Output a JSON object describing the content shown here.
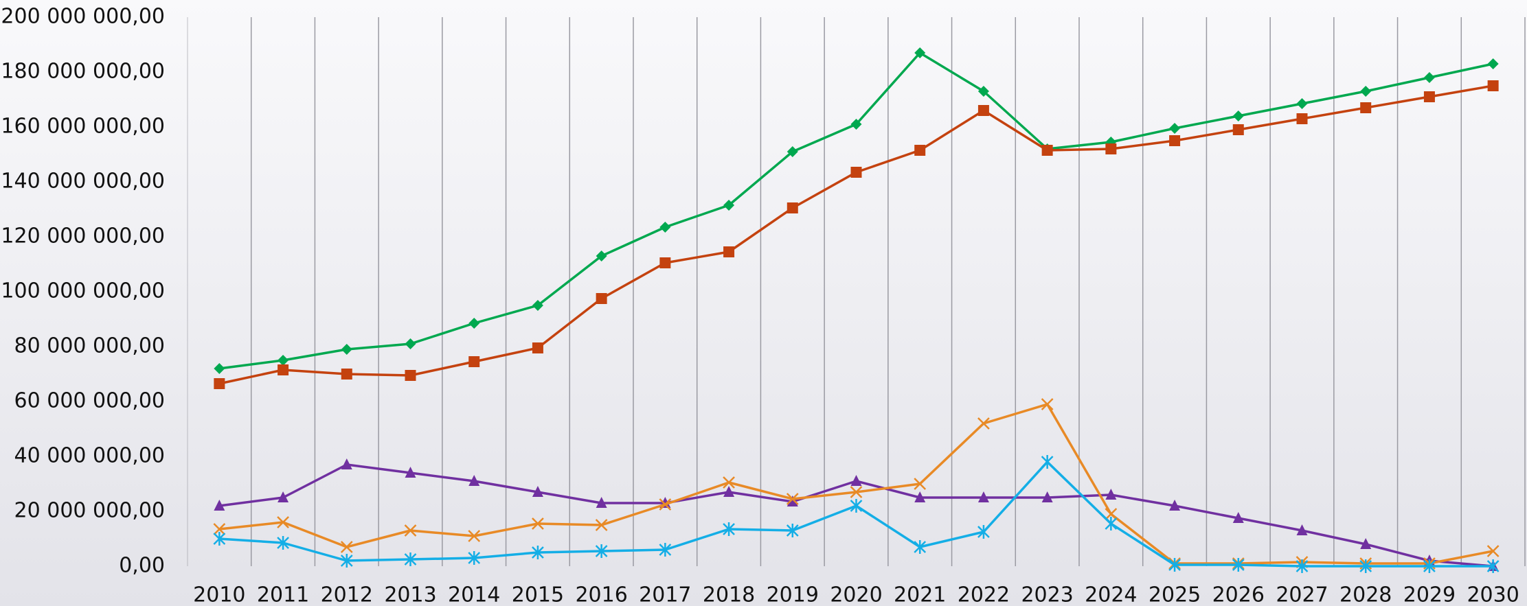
{
  "chart_data": {
    "type": "line",
    "categories": [
      "2010",
      "2011",
      "2012",
      "2013",
      "2014",
      "2015",
      "2016",
      "2017",
      "2018",
      "2019",
      "2020",
      "2021",
      "2022",
      "2023",
      "2024",
      "2025",
      "2026",
      "2027",
      "2028",
      "2029",
      "2030"
    ],
    "ylim": [
      0,
      200000000
    ],
    "yticks": [
      {
        "value": 0,
        "label": "0,00"
      },
      {
        "value": 20000000,
        "label": "20 000 000,00"
      },
      {
        "value": 40000000,
        "label": "40 000 000,00"
      },
      {
        "value": 60000000,
        "label": "60 000 000,00"
      },
      {
        "value": 80000000,
        "label": "80 000 000,00"
      },
      {
        "value": 100000000,
        "label": "100 000 000,00"
      },
      {
        "value": 120000000,
        "label": "120 000 000,00"
      },
      {
        "value": 140000000,
        "label": "140 000 000,00"
      },
      {
        "value": 160000000,
        "label": "160 000 000,00"
      },
      {
        "value": 180000000,
        "label": "180 000 000,00"
      },
      {
        "value": 200000000,
        "label": "200 000 000,00"
      }
    ],
    "grid": true,
    "series": [
      {
        "color": "#00a84f",
        "marker": "diamond",
        "values": [
          72000000,
          75000000,
          79000000,
          81000000,
          88500000,
          95000000,
          113000000,
          123500000,
          131500000,
          151000000,
          161000000,
          187000000,
          173000000,
          152000000,
          154500000,
          159500000,
          164000000,
          168500000,
          173000000,
          178000000,
          183000000
        ]
      },
      {
        "color": "#c4420f",
        "marker": "square",
        "values": [
          66500000,
          71500000,
          70000000,
          69500000,
          74500000,
          79500000,
          97500000,
          110500000,
          114500000,
          130500000,
          143500000,
          151500000,
          166000000,
          151500000,
          152000000,
          155000000,
          159000000,
          163000000,
          167000000,
          171000000,
          175000000
        ]
      },
      {
        "color": "#7030a0",
        "marker": "triangle",
        "values": [
          22000000,
          25000000,
          37000000,
          34000000,
          31000000,
          27000000,
          23000000,
          23000000,
          27000000,
          23500000,
          31000000,
          25000000,
          25000000,
          25000000,
          26000000,
          22000000,
          17500000,
          13000000,
          8000000,
          2000000,
          0
        ]
      },
      {
        "color": "#e88a26",
        "marker": "x",
        "values": [
          13500000,
          16000000,
          7000000,
          13000000,
          11000000,
          15500000,
          15000000,
          22500000,
          30500000,
          24500000,
          27000000,
          30000000,
          52000000,
          59000000,
          19000000,
          1000000,
          1000000,
          1500000,
          1000000,
          1000000,
          5500000
        ]
      },
      {
        "color": "#14aee6",
        "marker": "star",
        "values": [
          10000000,
          8500000,
          2000000,
          2500000,
          3000000,
          5000000,
          5500000,
          6000000,
          13500000,
          13000000,
          22000000,
          7000000,
          12500000,
          38000000,
          15500000,
          500000,
          500000,
          0,
          0,
          0,
          0
        ]
      }
    ]
  }
}
